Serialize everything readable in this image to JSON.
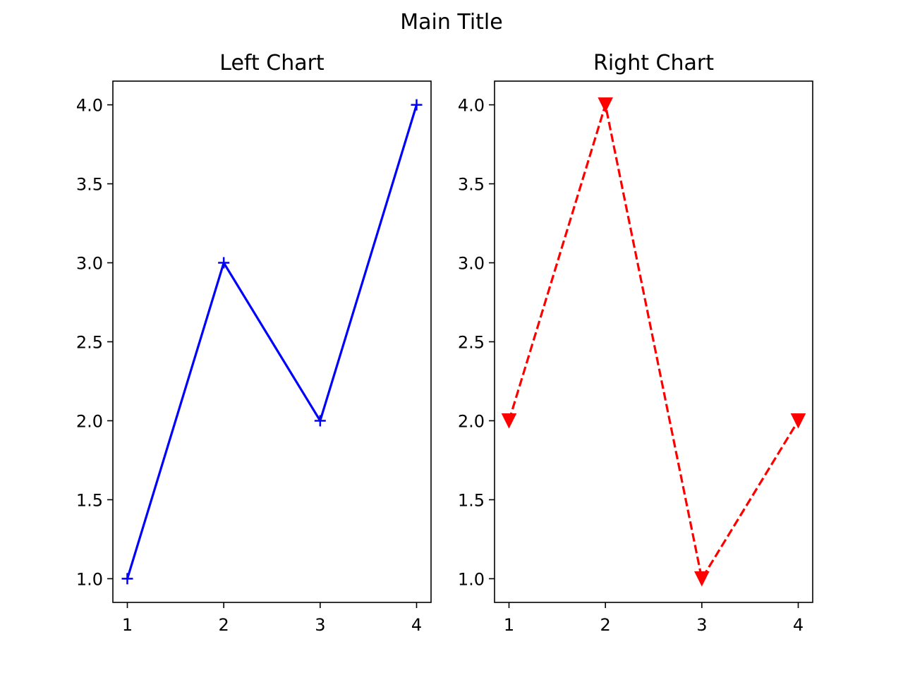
{
  "figure": {
    "title": "Main Title"
  },
  "chart_data": [
    {
      "type": "line",
      "title": "Left Chart",
      "xlabel": "",
      "ylabel": "",
      "x": [
        1,
        2,
        3,
        4
      ],
      "xticks": [
        "1",
        "2",
        "3",
        "4"
      ],
      "yticks": [
        "1.0",
        "1.5",
        "2.0",
        "2.5",
        "3.0",
        "3.5",
        "4.0"
      ],
      "xlim": [
        0.85,
        4.15
      ],
      "ylim": [
        0.85,
        4.15
      ],
      "grid": false,
      "series": [
        {
          "values": [
            1,
            3,
            2,
            4
          ],
          "color": "#0000ff",
          "line_style": "solid",
          "marker": "plus"
        }
      ]
    },
    {
      "type": "line",
      "title": "Right Chart",
      "xlabel": "",
      "ylabel": "",
      "x": [
        1,
        2,
        3,
        4
      ],
      "xticks": [
        "1",
        "2",
        "3",
        "4"
      ],
      "yticks": [
        "1.0",
        "1.5",
        "2.0",
        "2.5",
        "3.0",
        "3.5",
        "4.0"
      ],
      "xlim": [
        0.85,
        4.15
      ],
      "ylim": [
        0.85,
        4.15
      ],
      "grid": false,
      "series": [
        {
          "values": [
            2,
            4,
            1,
            2
          ],
          "color": "#ff0000",
          "line_style": "dashed",
          "marker": "triangle-down"
        }
      ]
    }
  ]
}
